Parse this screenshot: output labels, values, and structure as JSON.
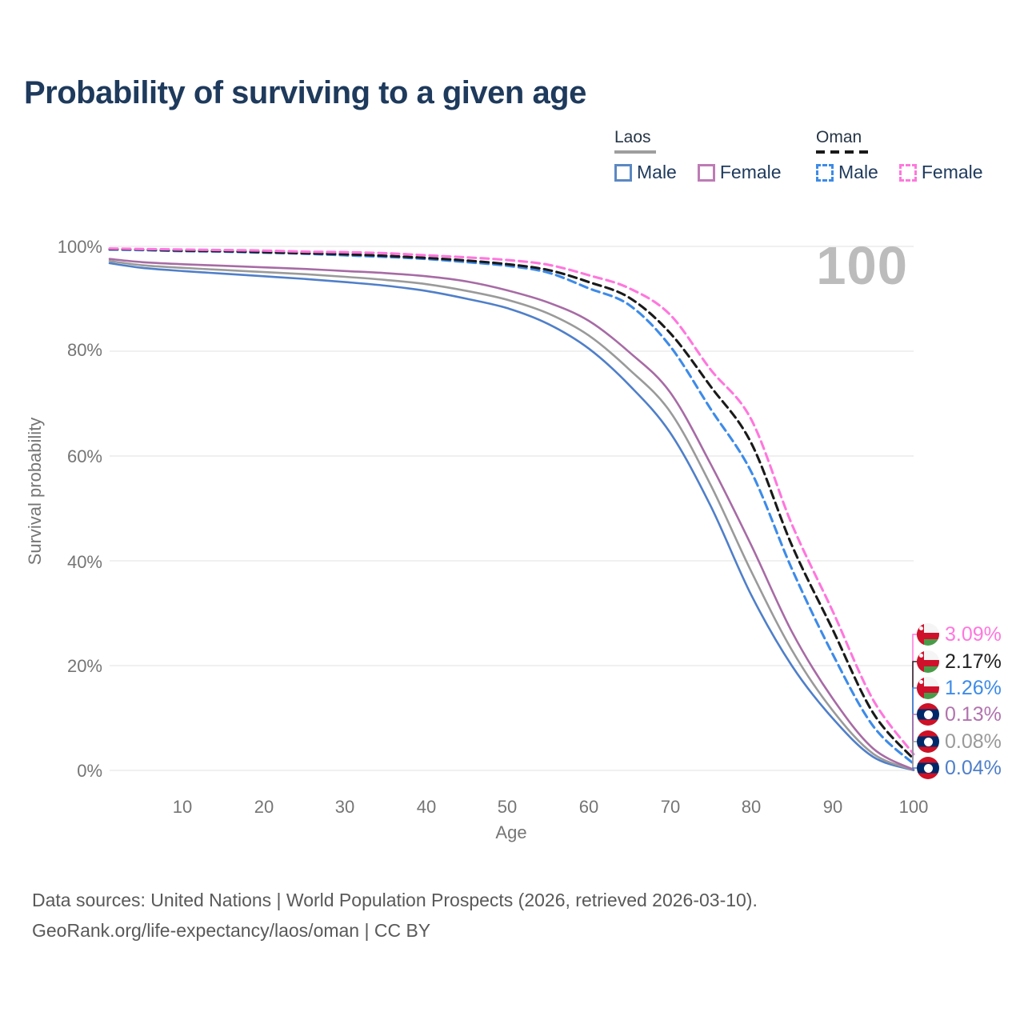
{
  "title": "Probability of surviving to a given age",
  "watermark": "100",
  "legend": {
    "laos": {
      "label": "Laos",
      "male": "Male",
      "female": "Female"
    },
    "oman": {
      "label": "Oman",
      "male": "Male",
      "female": "Female"
    }
  },
  "y_axis": {
    "title": "Survival probability",
    "ticks": [
      "100%",
      "80%",
      "60%",
      "40%",
      "20%",
      "0%"
    ]
  },
  "x_axis": {
    "title": "Age",
    "ticks": [
      "10",
      "20",
      "30",
      "40",
      "50",
      "60",
      "70",
      "80",
      "90",
      "100"
    ]
  },
  "end_labels": [
    {
      "series": "Oman Female",
      "flag": "oman",
      "value": "3.09%",
      "color": "#ff77dd"
    },
    {
      "series": "Oman",
      "flag": "oman",
      "value": "2.17%",
      "color": "#222222"
    },
    {
      "series": "Oman Male",
      "flag": "oman",
      "value": "1.26%",
      "color": "#3d8be8"
    },
    {
      "series": "Laos Female",
      "flag": "laos",
      "value": "0.13%",
      "color": "#b173ae"
    },
    {
      "series": "Laos",
      "flag": "laos",
      "value": "0.08%",
      "color": "#9a9a9a"
    },
    {
      "series": "Laos Male",
      "flag": "laos",
      "value": "0.04%",
      "color": "#4f7fc9"
    }
  ],
  "footer": {
    "line1": "Data sources: United Nations | World Population Prospects (2026, retrieved 2026-03-10).",
    "line2": "GeoRank.org/life-expectancy/laos/oman | CC BY"
  },
  "chart_data": {
    "type": "line",
    "title": "Probability of surviving to a given age",
    "xlabel": "Age",
    "ylabel": "Survival probability",
    "xlim": [
      1,
      100
    ],
    "ylim": [
      0,
      100
    ],
    "grid": "horizontal",
    "legend_position": "top-right",
    "y_gridlines_percent": [
      0,
      20,
      40,
      60,
      80,
      100
    ],
    "x": [
      1,
      5,
      10,
      15,
      20,
      25,
      30,
      35,
      40,
      45,
      50,
      55,
      60,
      65,
      70,
      75,
      80,
      85,
      90,
      95,
      100
    ],
    "series": [
      {
        "name": "Laos Male",
        "country": "Laos",
        "sex": "male",
        "color": "#4f7fc9",
        "dash": false,
        "values": [
          96.8,
          95.9,
          95.3,
          94.8,
          94.3,
          93.8,
          93.2,
          92.5,
          91.5,
          90.0,
          88.2,
          85.2,
          80.5,
          73.5,
          64.5,
          50.5,
          33.5,
          20.0,
          10.0,
          2.6,
          0.04
        ]
      },
      {
        "name": "Laos",
        "country": "Laos",
        "sex": "both",
        "color": "#9a9a9a",
        "dash": false,
        "values": [
          97.2,
          96.4,
          95.9,
          95.5,
          95.1,
          94.7,
          94.2,
          93.6,
          92.8,
          91.5,
          89.8,
          87.2,
          83.0,
          76.5,
          68.5,
          54.5,
          38.0,
          23.0,
          11.5,
          3.2,
          0.08
        ]
      },
      {
        "name": "Laos Female",
        "country": "Laos",
        "sex": "female",
        "color": "#a76ba5",
        "dash": false,
        "values": [
          97.6,
          97.0,
          96.6,
          96.3,
          96.0,
          95.7,
          95.3,
          94.9,
          94.3,
          93.3,
          91.6,
          89.3,
          85.8,
          79.8,
          72.2,
          58.5,
          43.0,
          26.5,
          13.8,
          4.2,
          0.13
        ]
      },
      {
        "name": "Oman Male",
        "country": "Oman",
        "sex": "male",
        "color": "#3d8be8",
        "dash": true,
        "values": [
          99.4,
          99.3,
          99.1,
          99.0,
          98.8,
          98.6,
          98.3,
          98.0,
          97.6,
          97.0,
          96.3,
          95.0,
          92.0,
          88.8,
          81.0,
          69.0,
          57.0,
          38.5,
          22.3,
          8.5,
          1.26
        ]
      },
      {
        "name": "Oman",
        "country": "Oman",
        "sex": "both",
        "color": "#1a1a1a",
        "dash": true,
        "values": [
          99.5,
          99.4,
          99.2,
          99.1,
          98.9,
          98.7,
          98.5,
          98.2,
          97.8,
          97.3,
          96.6,
          95.5,
          93.2,
          90.2,
          83.5,
          73.3,
          62.5,
          43.0,
          27.0,
          11.0,
          2.17
        ]
      },
      {
        "name": "Oman Female",
        "country": "Oman",
        "sex": "female",
        "color": "#ff77dd",
        "dash": true,
        "values": [
          99.6,
          99.5,
          99.4,
          99.3,
          99.2,
          99.0,
          98.9,
          98.7,
          98.3,
          97.9,
          97.4,
          96.5,
          94.5,
          92.0,
          87.0,
          76.5,
          67.0,
          47.0,
          30.5,
          13.5,
          3.09
        ]
      }
    ],
    "end_values_at_age_100": {
      "Oman Female": 3.09,
      "Oman": 2.17,
      "Oman Male": 1.26,
      "Laos Female": 0.13,
      "Laos": 0.08,
      "Laos Male": 0.04
    }
  }
}
